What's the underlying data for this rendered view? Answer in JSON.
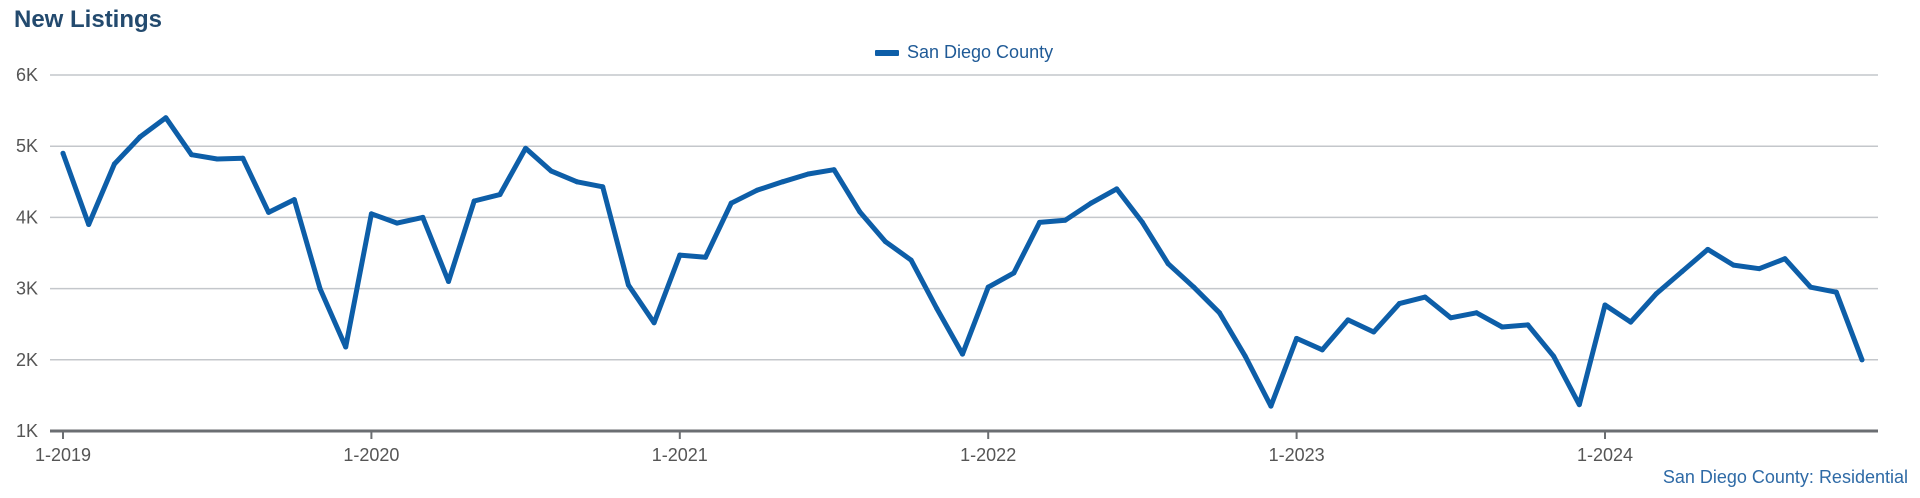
{
  "header": {
    "title": "New Listings",
    "footer_note": "San Diego County: Residential"
  },
  "colors": {
    "series": "#0d5ea8",
    "grid": "#c4c7cb",
    "axis": "#6b6e72",
    "tick_text": "#555555"
  },
  "chart_data": {
    "type": "line",
    "title": "New Listings",
    "xlabel": "",
    "ylabel": "",
    "legend_position": "top-center",
    "grid": true,
    "ylim": [
      1000,
      6000
    ],
    "y_ticks": [
      {
        "value": 6000,
        "label": "6K"
      },
      {
        "value": 5000,
        "label": "5K"
      },
      {
        "value": 4000,
        "label": "4K"
      },
      {
        "value": 3000,
        "label": "3K"
      },
      {
        "value": 2000,
        "label": "2K"
      },
      {
        "value": 1000,
        "label": "1K"
      }
    ],
    "x_ticks": [
      "1-2019",
      "1-2020",
      "1-2021",
      "1-2022",
      "1-2023",
      "1-2024"
    ],
    "x": [
      "1-2019",
      "2-2019",
      "3-2019",
      "4-2019",
      "5-2019",
      "6-2019",
      "7-2019",
      "8-2019",
      "9-2019",
      "10-2019",
      "11-2019",
      "12-2019",
      "1-2020",
      "2-2020",
      "3-2020",
      "4-2020",
      "5-2020",
      "6-2020",
      "7-2020",
      "8-2020",
      "9-2020",
      "10-2020",
      "11-2020",
      "12-2020",
      "1-2021",
      "2-2021",
      "3-2021",
      "4-2021",
      "5-2021",
      "6-2021",
      "7-2021",
      "8-2021",
      "9-2021",
      "10-2021",
      "11-2021",
      "12-2021",
      "1-2022",
      "2-2022",
      "3-2022",
      "4-2022",
      "5-2022",
      "6-2022",
      "7-2022",
      "8-2022",
      "9-2022",
      "10-2022",
      "11-2022",
      "12-2022",
      "1-2023",
      "2-2023",
      "3-2023",
      "4-2023",
      "5-2023",
      "6-2023",
      "7-2023",
      "8-2023",
      "9-2023",
      "10-2023",
      "11-2023",
      "12-2023",
      "1-2024",
      "2-2024",
      "3-2024",
      "4-2024",
      "5-2024",
      "6-2024",
      "7-2024",
      "8-2024",
      "9-2024",
      "10-2024",
      "11-2024"
    ],
    "series": [
      {
        "name": "San Diego County",
        "values": [
          4900,
          3900,
          4750,
          5130,
          5400,
          4880,
          4820,
          4830,
          4070,
          4250,
          3000,
          2180,
          4050,
          3920,
          4000,
          3100,
          4230,
          4320,
          4970,
          4650,
          4500,
          4430,
          3050,
          2520,
          3470,
          3440,
          4200,
          4380,
          4500,
          4610,
          4670,
          4080,
          3660,
          3400,
          2720,
          2080,
          3020,
          3220,
          3930,
          3960,
          4200,
          4400,
          3930,
          3350,
          3020,
          2660,
          2050,
          1350,
          2300,
          2140,
          2560,
          2390,
          2790,
          2880,
          2590,
          2660,
          2460,
          2490,
          2050,
          1370,
          2770,
          2530,
          2930,
          3240,
          3550,
          3330,
          3280,
          3420,
          3020,
          2950,
          2000
        ]
      }
    ]
  }
}
